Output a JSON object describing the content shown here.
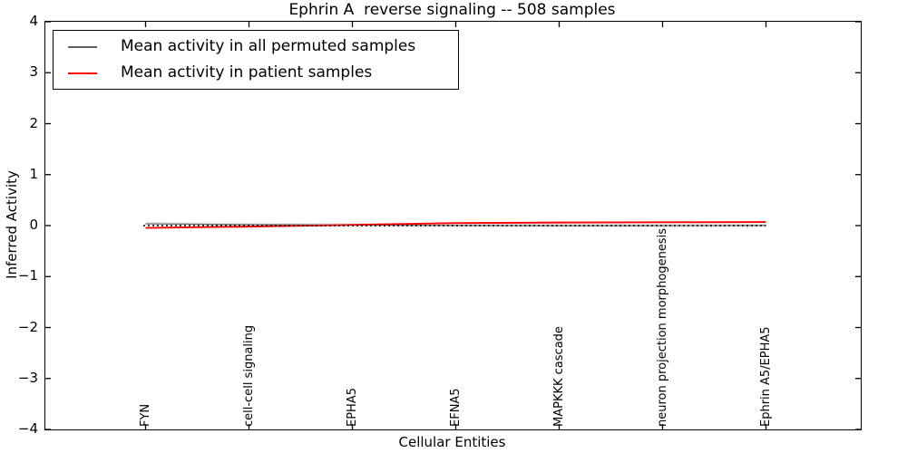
{
  "window": {
    "background": "#ffffff"
  },
  "chart_data": {
    "type": "line",
    "title": "Ephrin A  reverse signaling -- 508 samples",
    "xlabel": "Cellular Entities",
    "ylabel": "Inferred Activity",
    "ylim": [
      -4,
      4
    ],
    "y_ticks": [
      4,
      3,
      2,
      1,
      0,
      -1,
      -2,
      -3,
      -4
    ],
    "y_tick_labels": [
      "4",
      "3",
      "2",
      "1",
      "0",
      "−1",
      "−2",
      "−3",
      "−4"
    ],
    "categories": [
      "FYN",
      "cell-cell signaling",
      "EPHA5",
      "EFNA5",
      "MAPKKK cascade",
      "neuron projection morphogenesis",
      "Ephrin A5/EPHA5"
    ],
    "series": [
      {
        "name": "Mean activity in all permuted samples",
        "color": "#000000",
        "line_style": "solid",
        "values": [
          0.035,
          0.02,
          0.01,
          0.005,
          0.0,
          0.0,
          0.005
        ]
      },
      {
        "name": "Mean activity in patient samples",
        "color": "#ff0000",
        "line_style": "solid",
        "values": [
          -0.045,
          -0.02,
          0.015,
          0.05,
          0.06,
          0.065,
          0.07
        ]
      }
    ],
    "baseline": {
      "value": 0.0,
      "style": "dotted",
      "color": "#000000"
    },
    "legend_position": "upper left",
    "grid": false,
    "tick_direction": "in"
  }
}
